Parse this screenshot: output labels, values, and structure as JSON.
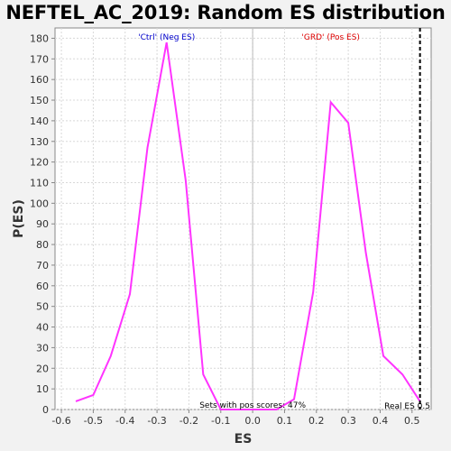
{
  "chart_data": {
    "type": "line",
    "title": "NEFTEL_AC_2019: Random ES distribution",
    "xlabel": "ES",
    "ylabel": "P(ES)",
    "xlim": [
      -0.62,
      0.56
    ],
    "ylim": [
      0,
      185
    ],
    "x_ticks": [
      -0.6,
      -0.5,
      -0.4,
      -0.3,
      -0.2,
      -0.1,
      0.0,
      0.1,
      0.2,
      0.3,
      0.4,
      0.5
    ],
    "x_tick_labels": [
      "-0.6",
      "-0.5",
      "-0.4",
      "-0.3",
      "-0.2",
      "-0.1",
      "0.0",
      "0.1",
      "0.2",
      "0.3",
      "0.4",
      "0.5"
    ],
    "y_ticks": [
      0,
      10,
      20,
      30,
      40,
      50,
      60,
      70,
      80,
      90,
      100,
      110,
      120,
      130,
      140,
      150,
      160,
      170,
      180
    ],
    "grid": true,
    "line_color": "#ff33ff",
    "series": [
      {
        "name": "",
        "x": [
          -0.555,
          -0.5,
          -0.445,
          -0.385,
          -0.33,
          -0.27,
          -0.21,
          -0.155,
          -0.1,
          -0.04,
          0.02,
          0.075,
          0.13,
          0.19,
          0.245,
          0.3,
          0.355,
          0.41,
          0.47,
          0.525
        ],
        "y": [
          4,
          7,
          26,
          56,
          127,
          178,
          111,
          17,
          0,
          0,
          0,
          0,
          5,
          57,
          149,
          139,
          76,
          26,
          17,
          4
        ]
      }
    ],
    "annotations": {
      "neg_label": "'Ctrl' (Neg ES)",
      "pos_label": "'GRD' (Pos ES)",
      "neg_color": "#0000cc",
      "pos_color": "#dd0000",
      "sets_text": "Sets with pos scores: 47%",
      "real_es_text": "Real ES 0.5",
      "real_es_x": 0.525
    }
  }
}
